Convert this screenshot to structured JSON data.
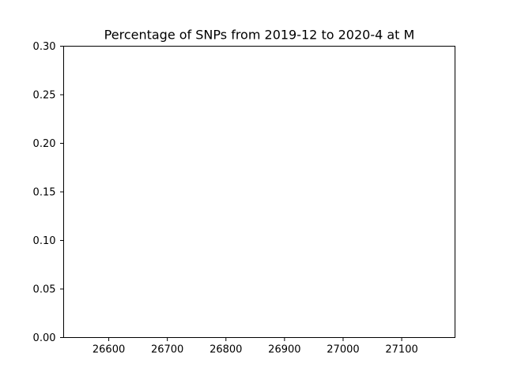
{
  "chart_data": {
    "type": "line",
    "title": "Percentage of SNPs from 2019-12 to 2020-4 at M",
    "xlabel": "",
    "ylabel": "",
    "xlim": [
      26523,
      27191
    ],
    "ylim": [
      0,
      0.3
    ],
    "x_ticks": [
      26600,
      26700,
      26800,
      26900,
      27000,
      27100
    ],
    "x_tick_labels": [
      "26600",
      "26700",
      "26800",
      "26900",
      "27000",
      "27100"
    ],
    "y_ticks": [
      0,
      0.05,
      0.1,
      0.15,
      0.2,
      0.25,
      0.3
    ],
    "y_tick_labels": [
      "0.00",
      "0.05",
      "0.10",
      "0.15",
      "0.20",
      "0.25",
      "0.30"
    ],
    "grid": false,
    "series": []
  }
}
